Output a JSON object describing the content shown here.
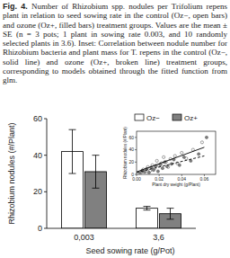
{
  "figure": {
    "label": "Fig. 4.",
    "caption": "Number of Rhizobium spp. nodules per Trifolium repens plant in relation to seed sowing rate in the control (Oz−, open bars) and ozone (Oz+, filled bars) treatment groups. Values are the mean ± SE (n = 3 pots; 1 plant in sowing rate 0.003, and 10 randomly selected plants in 3.6). Inset: Correlation between nodule number for Rhizobium bacteria and plant mass for T. repens in the control (Oz−, solid line) and ozone (Oz+, broken line) treatment groups, corresponding to models obtained through the fitted function from glm."
  },
  "chart_data": [
    {
      "type": "bar",
      "x_label": "Seed sowing rate (g/Pot)",
      "y_label": "Rhizobium nodules (#/Plant)",
      "categories": [
        "0,003",
        "3,6"
      ],
      "series": [
        {
          "name": "Oz−",
          "color": "#ffffff",
          "values": [
            42,
            11
          ],
          "errors": [
            12,
            1
          ]
        },
        {
          "name": "Oz+",
          "color": "#808080",
          "values": [
            31,
            8
          ],
          "errors": [
            9,
            3
          ]
        }
      ],
      "ylim": [
        0,
        60
      ],
      "yticks": [
        0,
        20,
        40,
        60
      ],
      "legend": "top-right"
    },
    {
      "type": "scatter",
      "x_label": "Plant dry weight (g/Plant)",
      "y_label": "Rhizobium nodules (#/Plant)",
      "series": [
        {
          "type": "scatter",
          "marker": "circle",
          "color": "#ffffff",
          "x": [
            0.004,
            0.006,
            0.008,
            0.01,
            0.012,
            0.014,
            0.016,
            0.018,
            0.02,
            0.022,
            0.024,
            0.026,
            0.028,
            0.03,
            0.034,
            0.036,
            0.04,
            0.044,
            0.05,
            0.058
          ],
          "values": [
            3,
            8,
            5,
            12,
            6,
            15,
            10,
            22,
            14,
            18,
            28,
            20,
            12,
            25,
            30,
            18,
            35,
            26,
            40,
            52
          ]
        },
        {
          "type": "scatter",
          "marker": "circle",
          "color": "#808080",
          "x": [
            0.003,
            0.005,
            0.007,
            0.009,
            0.011,
            0.013,
            0.015,
            0.017,
            0.019,
            0.021,
            0.023,
            0.025,
            0.027,
            0.031,
            0.033,
            0.038,
            0.042,
            0.048,
            0.055,
            0.062
          ],
          "values": [
            2,
            6,
            4,
            9,
            3,
            11,
            7,
            14,
            5,
            16,
            10,
            20,
            13,
            17,
            24,
            15,
            28,
            22,
            33,
            60
          ]
        },
        {
          "type": "line",
          "line_style": "solid",
          "color": "#000000",
          "x": [
            0,
            0.06
          ],
          "values": [
            4,
            44
          ]
        },
        {
          "type": "line",
          "line_style": "dashed",
          "color": "#000000",
          "x": [
            0,
            0.06
          ],
          "values": [
            3,
            30
          ]
        }
      ],
      "xlim": [
        0,
        0.07
      ],
      "xticks": [
        {
          "value": 0,
          "label": "0.00"
        },
        {
          "value": 0.02,
          "label": "0.02"
        },
        {
          "value": 0.04,
          "label": "0.04"
        },
        {
          "value": 0.06,
          "label": "0.06"
        }
      ],
      "ylim": [
        0,
        70
      ],
      "yticks": [
        0,
        20,
        40,
        60
      ]
    }
  ]
}
